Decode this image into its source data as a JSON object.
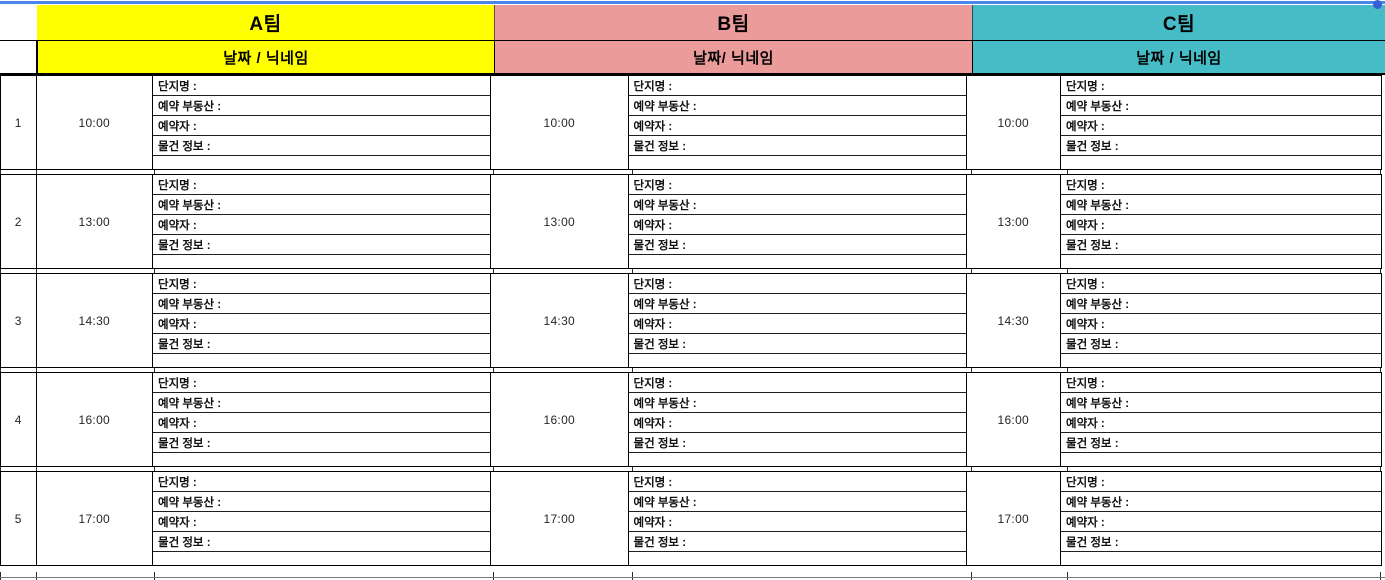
{
  "selection": {
    "border_color": "#4a86e8",
    "handle_color": "#3660d6"
  },
  "teams": [
    {
      "name": "A팀",
      "subheader": "날짜 / 닉네임",
      "color": "#ffff00"
    },
    {
      "name": "B팀",
      "subheader": "날짜/ 닉네임",
      "color": "#ec9b9b"
    },
    {
      "name": "C팀",
      "subheader": "날짜 / 닉네임",
      "color": "#46bdc6"
    }
  ],
  "field_labels": [
    "단지명 :",
    "예약 부동산 :",
    "예약자 :",
    "물건 정보 :"
  ],
  "rows": [
    {
      "num": "1",
      "time": "10:00"
    },
    {
      "num": "2",
      "time": "13:00"
    },
    {
      "num": "3",
      "time": "14:30"
    },
    {
      "num": "4",
      "time": "16:00"
    },
    {
      "num": "5",
      "time": "17:00"
    }
  ]
}
